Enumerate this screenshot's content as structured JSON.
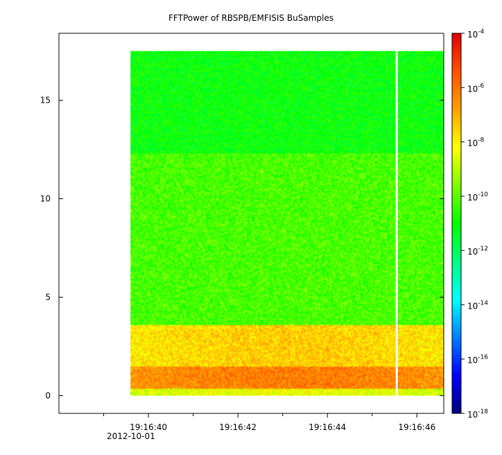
{
  "chart_data": {
    "type": "heatmap",
    "title": "FFTPower of RBSPB/EMFISIS  BuSamples",
    "xlabel": "",
    "ylabel": "",
    "x_ticks": [
      {
        "t": 40,
        "label": "19:16:40"
      },
      {
        "t": 42,
        "label": "19:16:42"
      },
      {
        "t": 44,
        "label": "19:16:44"
      },
      {
        "t": 46,
        "label": "19:16:46"
      }
    ],
    "x_minor_ticks": [
      39,
      41,
      43,
      45
    ],
    "x_date_label": "2012-10-01",
    "xlim_seconds": [
      38.0,
      46.6
    ],
    "data_x_range_seconds": [
      39.6,
      46.6
    ],
    "gap_at_seconds": 45.55,
    "y_ticks": [
      0,
      5,
      10,
      15
    ],
    "ylim": [
      -0.9,
      18.4
    ],
    "data_y_range": [
      0,
      17.5
    ],
    "colorbar": {
      "scale": "log",
      "range_exponents": [
        -18,
        -4
      ],
      "tick_exponents": [
        -18,
        -16,
        -14,
        -12,
        -10,
        -8,
        -6,
        -4
      ],
      "tick_base": "10",
      "colors": [
        "#00007f",
        "#0000ff",
        "#007fff",
        "#00ffff",
        "#00ff7f",
        "#00ff00",
        "#7fff00",
        "#ffff00",
        "#ffa000",
        "#ff5000",
        "#e00000"
      ]
    },
    "bands": [
      {
        "y_range": [
          0,
          0.35
        ],
        "log_power": -8.7
      },
      {
        "y_range": [
          0.35,
          1.5
        ],
        "log_power": -6.5
      },
      {
        "y_range": [
          1.5,
          3.6
        ],
        "log_power": -7.8
      },
      {
        "y_range": [
          3.6,
          12.3
        ],
        "log_power": -10.2
      },
      {
        "y_range": [
          12.3,
          17.5
        ],
        "log_power": -11.0
      }
    ]
  }
}
